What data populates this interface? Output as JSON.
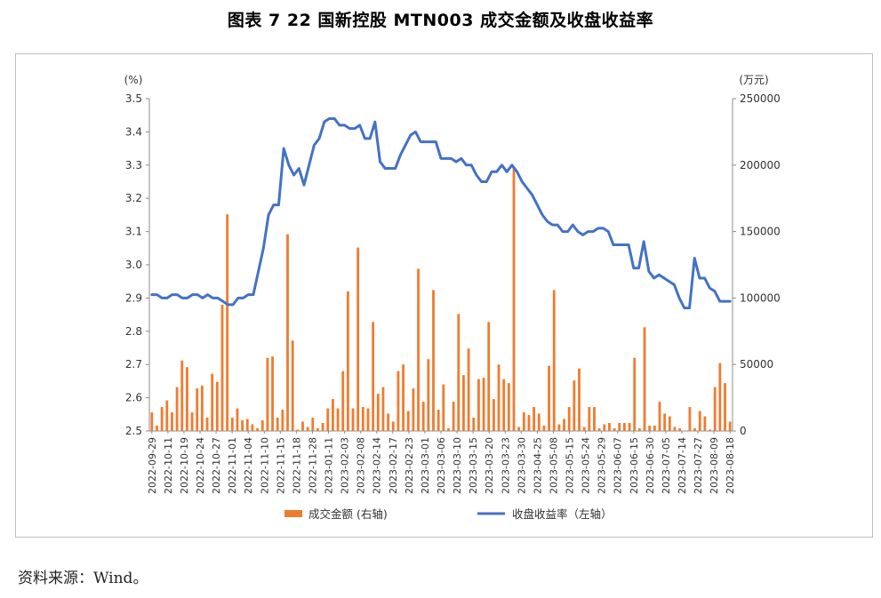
{
  "title": "图表 7  22 国新控股 MTN003 成交金额及收盘收益率",
  "source": "资料来源：Wind。",
  "chart_data": {
    "type": "bar+line",
    "left_axis": {
      "unit": "(%)",
      "min": 2.5,
      "max": 3.5,
      "ticks": [
        "2.5",
        "2.6",
        "2.7",
        "2.8",
        "2.9",
        "3.0",
        "3.1",
        "3.2",
        "3.3",
        "3.4",
        "3.5"
      ]
    },
    "right_axis": {
      "unit": "(万元)",
      "min": 0,
      "max": 250000,
      "ticks": [
        "0",
        "50000",
        "100000",
        "150000",
        "200000",
        "250000"
      ]
    },
    "x_tick_labels": [
      "2022-09-29",
      "2022-10-11",
      "2022-10-19",
      "2022-10-24",
      "2022-10-27",
      "2022-11-01",
      "2022-11-04",
      "2022-11-10",
      "2022-11-15",
      "2022-11-18",
      "2022-11-28",
      "2023-01-11",
      "2023-02-03",
      "2023-02-08",
      "2023-02-14",
      "2023-02-17",
      "2023-02-23",
      "2023-03-01",
      "2023-03-06",
      "2023-03-10",
      "2023-03-15",
      "2023-03-20",
      "2023-03-23",
      "2023-03-30",
      "2023-04-25",
      "2023-05-08",
      "2023-05-15",
      "2023-05-24",
      "2023-05-29",
      "2023-06-07",
      "2023-06-15",
      "2023-06-30",
      "2023-07-05",
      "2023-07-14",
      "2023-07-27",
      "2023-08-09",
      "2023-08-18"
    ],
    "legend": [
      {
        "label": "成交金额 (右轴)",
        "color": "#ED7D31",
        "kind": "bar"
      },
      {
        "label": "收盘收益率（左轴）",
        "color": "#4472C4",
        "kind": "line"
      }
    ],
    "series": [
      {
        "name": "成交金额 (右轴)",
        "axis": "right",
        "values": [
          14000,
          4000,
          18000,
          23000,
          14000,
          33000,
          53000,
          48000,
          14000,
          32000,
          34000,
          10000,
          43000,
          37000,
          95000,
          163000,
          10000,
          17000,
          8000,
          9000,
          5000,
          2000,
          8000,
          55000,
          56000,
          10000,
          16000,
          148000,
          68000,
          1000,
          7000,
          3000,
          10000,
          2000,
          6000,
          17000,
          24000,
          17000,
          45000,
          105000,
          17000,
          138000,
          18000,
          17000,
          82000,
          28000,
          33000,
          13000,
          7000,
          45000,
          50000,
          15000,
          32000,
          122000,
          22000,
          54000,
          106000,
          16000,
          35000,
          2000,
          22000,
          88000,
          42000,
          62000,
          10000,
          39000,
          40000,
          82000,
          24000,
          50000,
          39000,
          36000,
          198000,
          3000,
          14000,
          12000,
          18000,
          13000,
          4000,
          49000,
          106000,
          5000,
          9000,
          18000,
          38000,
          47000,
          3000,
          18000,
          18000,
          2000,
          5000,
          6000,
          2000,
          6000,
          6000,
          6000,
          55000,
          2000,
          78000,
          4000,
          4000,
          22000,
          13000,
          11000,
          3000,
          2000,
          0,
          18000,
          2000,
          15000,
          11000,
          1000,
          33000,
          51000,
          36000,
          7000
        ]
      },
      {
        "name": "收盘收益率（左轴）",
        "axis": "left",
        "values": [
          2.91,
          2.91,
          2.9,
          2.9,
          2.91,
          2.91,
          2.9,
          2.9,
          2.91,
          2.91,
          2.9,
          2.91,
          2.9,
          2.9,
          2.89,
          2.88,
          2.88,
          2.9,
          2.9,
          2.91,
          2.91,
          2.98,
          3.05,
          3.15,
          3.18,
          3.18,
          3.35,
          3.3,
          3.27,
          3.29,
          3.24,
          3.3,
          3.36,
          3.38,
          3.43,
          3.44,
          3.44,
          3.42,
          3.42,
          3.41,
          3.41,
          3.42,
          3.38,
          3.38,
          3.43,
          3.31,
          3.29,
          3.29,
          3.29,
          3.33,
          3.36,
          3.39,
          3.4,
          3.37,
          3.37,
          3.37,
          3.37,
          3.32,
          3.32,
          3.32,
          3.31,
          3.32,
          3.3,
          3.3,
          3.27,
          3.25,
          3.25,
          3.28,
          3.28,
          3.3,
          3.28,
          3.3,
          3.28,
          3.25,
          3.23,
          3.21,
          3.18,
          3.15,
          3.13,
          3.12,
          3.12,
          3.1,
          3.1,
          3.12,
          3.1,
          3.09,
          3.1,
          3.1,
          3.11,
          3.11,
          3.1,
          3.06,
          3.06,
          3.06,
          3.06,
          2.99,
          2.99,
          3.07,
          2.98,
          2.96,
          2.97,
          2.96,
          2.95,
          2.94,
          2.9,
          2.87,
          2.87,
          3.02,
          2.96,
          2.96,
          2.93,
          2.92,
          2.89,
          2.89,
          2.89
        ]
      }
    ],
    "grid": false
  }
}
